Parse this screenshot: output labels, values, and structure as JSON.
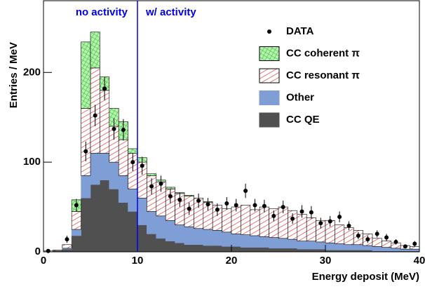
{
  "chart_data": {
    "type": "histogram",
    "xlabel": "Energy deposit (MeV)",
    "ylabel": "Entries / MeV",
    "xlim": [
      0,
      40
    ],
    "ylim": [
      0,
      280
    ],
    "xticks": [
      0,
      10,
      20,
      30,
      40
    ],
    "yticks": [
      0,
      100,
      200
    ],
    "bins": [
      0,
      1,
      2,
      3,
      4,
      5,
      6,
      7,
      8,
      9,
      10,
      11,
      12,
      13,
      14,
      15,
      16,
      17,
      18,
      19,
      20,
      21,
      22,
      23,
      24,
      25,
      26,
      27,
      28,
      29,
      30,
      31,
      32,
      33,
      34,
      35,
      36,
      37,
      38,
      39,
      40
    ],
    "series": [
      {
        "name": "CC QE",
        "color": "#505050",
        "fill": "solid",
        "values": [
          0,
          1,
          3,
          18,
          60,
          75,
          80,
          70,
          55,
          45,
          30,
          20,
          15,
          12,
          10,
          8,
          8,
          7,
          7,
          6,
          6,
          5,
          5,
          5,
          4,
          4,
          4,
          3,
          3,
          3,
          2,
          2,
          2,
          2,
          2,
          1,
          1,
          1,
          1,
          1
        ]
      },
      {
        "name": "Other",
        "color": "#7f9ed6",
        "fill": "solid",
        "values": [
          0,
          0,
          1,
          7,
          25,
          35,
          30,
          30,
          30,
          25,
          30,
          25,
          25,
          23,
          20,
          20,
          18,
          18,
          17,
          16,
          14,
          14,
          13,
          12,
          12,
          11,
          10,
          9,
          9,
          8,
          8,
          7,
          6,
          6,
          5,
          5,
          4,
          3,
          2,
          2
        ]
      },
      {
        "name": "CC resonant π",
        "color": "#e02020",
        "fill": "hatch",
        "values": [
          1,
          1,
          4,
          20,
          75,
          95,
          70,
          40,
          40,
          40,
          40,
          40,
          38,
          35,
          35,
          34,
          34,
          30,
          28,
          26,
          30,
          33,
          29,
          33,
          32,
          35,
          32,
          30,
          26,
          24,
          25,
          21,
          19,
          16,
          13,
          9,
          7,
          6,
          4,
          3
        ]
      },
      {
        "name": "CC coherent π",
        "color": "#20c020",
        "fill": "cross",
        "values": [
          0,
          0,
          0,
          13,
          74,
          40,
          15,
          20,
          20,
          5,
          5,
          2,
          2,
          2,
          1,
          1,
          0,
          1,
          0,
          0,
          0,
          0,
          0,
          0,
          0,
          0,
          0,
          0,
          0,
          0,
          0,
          0,
          0,
          0,
          0,
          0,
          0,
          0,
          0,
          0
        ]
      }
    ],
    "points": {
      "name": "DATA",
      "color": "#000000",
      "x": [
        0.5,
        2.5,
        3.5,
        4.5,
        5.5,
        6.5,
        7.5,
        8.5,
        9.5,
        10.5,
        11.5,
        12.5,
        13.5,
        14.5,
        15.5,
        16.5,
        17.5,
        18.5,
        19.5,
        20.5,
        21.5,
        22.5,
        23.5,
        24.5,
        25.5,
        26.5,
        27.5,
        28.5,
        29.5,
        30.5,
        31.5,
        32.5,
        33.5,
        34.5,
        35.5,
        36.5,
        37.5,
        38.5,
        39.5
      ],
      "values": [
        1,
        14,
        52,
        112,
        152,
        182,
        137,
        136,
        100,
        96,
        73,
        76,
        62,
        58,
        48,
        57,
        53,
        47,
        54,
        52,
        68,
        52,
        51,
        40,
        50,
        37,
        45,
        44,
        32,
        34,
        39,
        29,
        18,
        14,
        20,
        16,
        11,
        6,
        9
      ],
      "errors": [
        1,
        4,
        7,
        11,
        12,
        13,
        12,
        12,
        10,
        10,
        9,
        9,
        8,
        8,
        7,
        8,
        7,
        7,
        7,
        7,
        8,
        7,
        7,
        6,
        7,
        6,
        7,
        7,
        6,
        6,
        6,
        5,
        4,
        4,
        4,
        4,
        3,
        2,
        3
      ]
    },
    "divider": {
      "value": 10,
      "left": "no activity",
      "right": "w/ activity",
      "color": "#0000ee"
    }
  }
}
